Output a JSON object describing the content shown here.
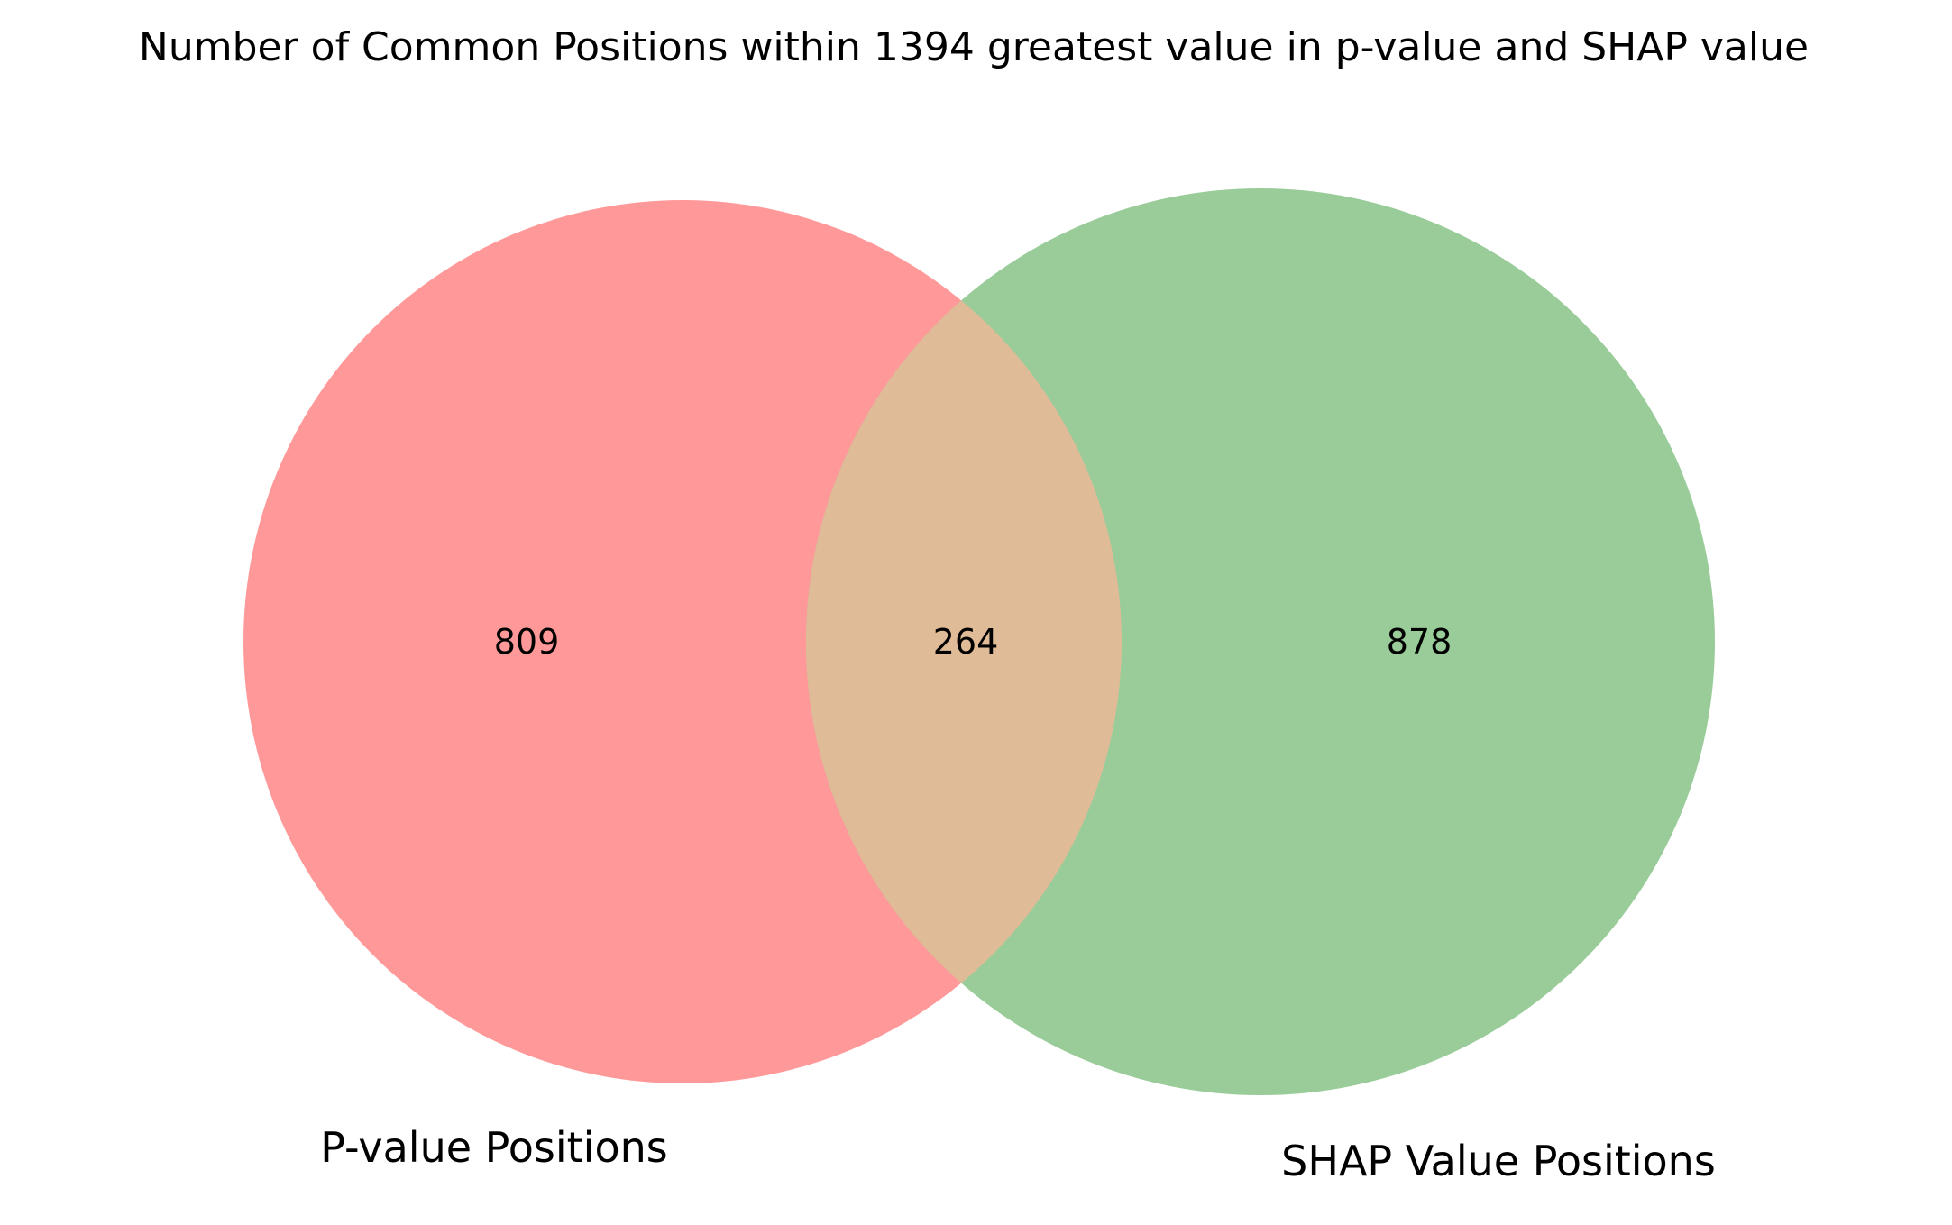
{
  "title": "Number of Common Positions within 1394 greatest value in p-value and SHAP value",
  "chart_data": {
    "type": "venn",
    "sets": [
      {
        "name": "P-value Positions",
        "only_count": "809",
        "color": "#ff9999"
      },
      {
        "name": "SHAP Value Positions",
        "only_count": "878",
        "color": "#99cc99"
      }
    ],
    "intersection": {
      "count": "264",
      "color": "#e0bb98"
    }
  }
}
